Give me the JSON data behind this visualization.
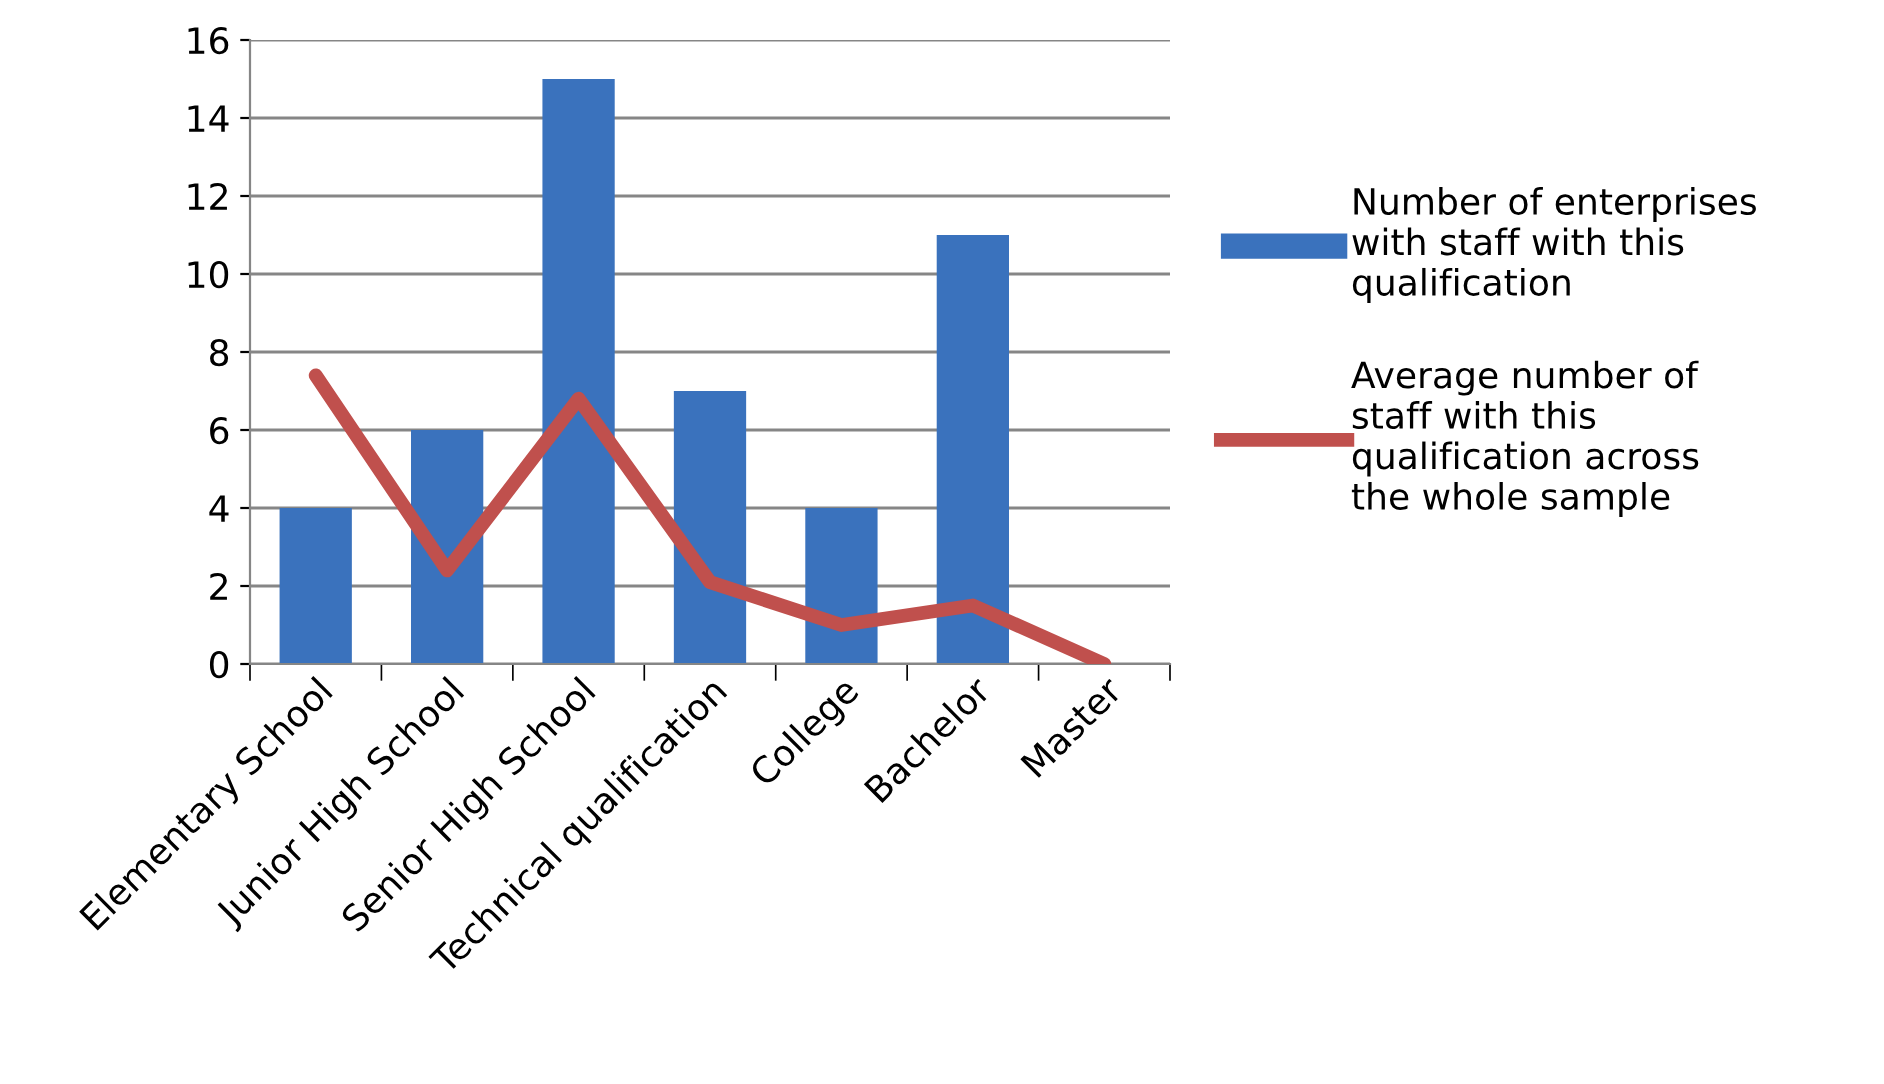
{
  "chart_data": {
    "type": "bar",
    "categories": [
      "Elementary School",
      "Junior High School",
      "Senior High School",
      "Technical qualification",
      "College",
      "Bachelor",
      "Master"
    ],
    "series": [
      {
        "name": "Number of enterprises with staff with this qualification",
        "color": "#3a72bd",
        "values": [
          4,
          6,
          15,
          7,
          4,
          11,
          0
        ]
      },
      {
        "name": "Average number of staff with this qualification across the whole sample",
        "type": "line",
        "color": "#c0504d",
        "values": [
          7.4,
          2.4,
          6.8,
          2.1,
          1.0,
          1.5,
          0.0
        ]
      }
    ],
    "ylim": [
      0,
      16
    ],
    "yticks": [
      0,
      2,
      4,
      6,
      8,
      10,
      12,
      14,
      16
    ],
    "grid": "y",
    "legend": "right",
    "marker": "none",
    "line_style": "solid"
  }
}
